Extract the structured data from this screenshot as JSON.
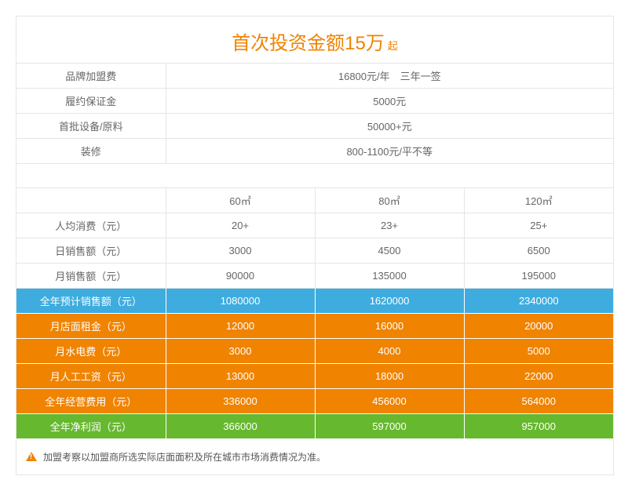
{
  "title": {
    "main": "首次投资金额15万",
    "suffix": "起"
  },
  "top_rows": [
    {
      "label": "品牌加盟费",
      "value": "16800元/年 三年一签"
    },
    {
      "label": "履约保证金",
      "value": "5000元"
    },
    {
      "label": "首批设备/原料",
      "value": "50000+元"
    },
    {
      "label": "装修",
      "value": "800-1100元/平不等"
    }
  ],
  "size_headers": [
    "60㎡",
    "80㎡",
    "120㎡"
  ],
  "detail_rows": [
    {
      "label": "人均消费（元）",
      "v": [
        "20+",
        "23+",
        "25+"
      ],
      "cls": ""
    },
    {
      "label": "日销售额（元）",
      "v": [
        "3000",
        "4500",
        "6500"
      ],
      "cls": ""
    },
    {
      "label": "月销售额（元）",
      "v": [
        "90000",
        "135000",
        "195000"
      ],
      "cls": ""
    },
    {
      "label": "全年预计销售额（元）",
      "v": [
        "1080000",
        "1620000",
        "2340000"
      ],
      "cls": "row-blue"
    },
    {
      "label": "月店面租金（元）",
      "v": [
        "12000",
        "16000",
        "20000"
      ],
      "cls": "row-orange"
    },
    {
      "label": "月水电费（元）",
      "v": [
        "3000",
        "4000",
        "5000"
      ],
      "cls": "row-orange"
    },
    {
      "label": "月人工工资（元）",
      "v": [
        "13000",
        "18000",
        "22000"
      ],
      "cls": "row-orange"
    },
    {
      "label": "全年经营费用（元）",
      "v": [
        "336000",
        "456000",
        "564000"
      ],
      "cls": "row-orange"
    },
    {
      "label": "全年净利润（元）",
      "v": [
        "366000",
        "597000",
        "957000"
      ],
      "cls": "row-green"
    }
  ],
  "footer": "加盟考察以加盟商所选实际店面面积及所在城市市场消费情况为准。",
  "colors": {
    "accent": "#f08300",
    "blue": "#3eacdf",
    "green": "#66b82e",
    "border": "#e5e5e5"
  }
}
